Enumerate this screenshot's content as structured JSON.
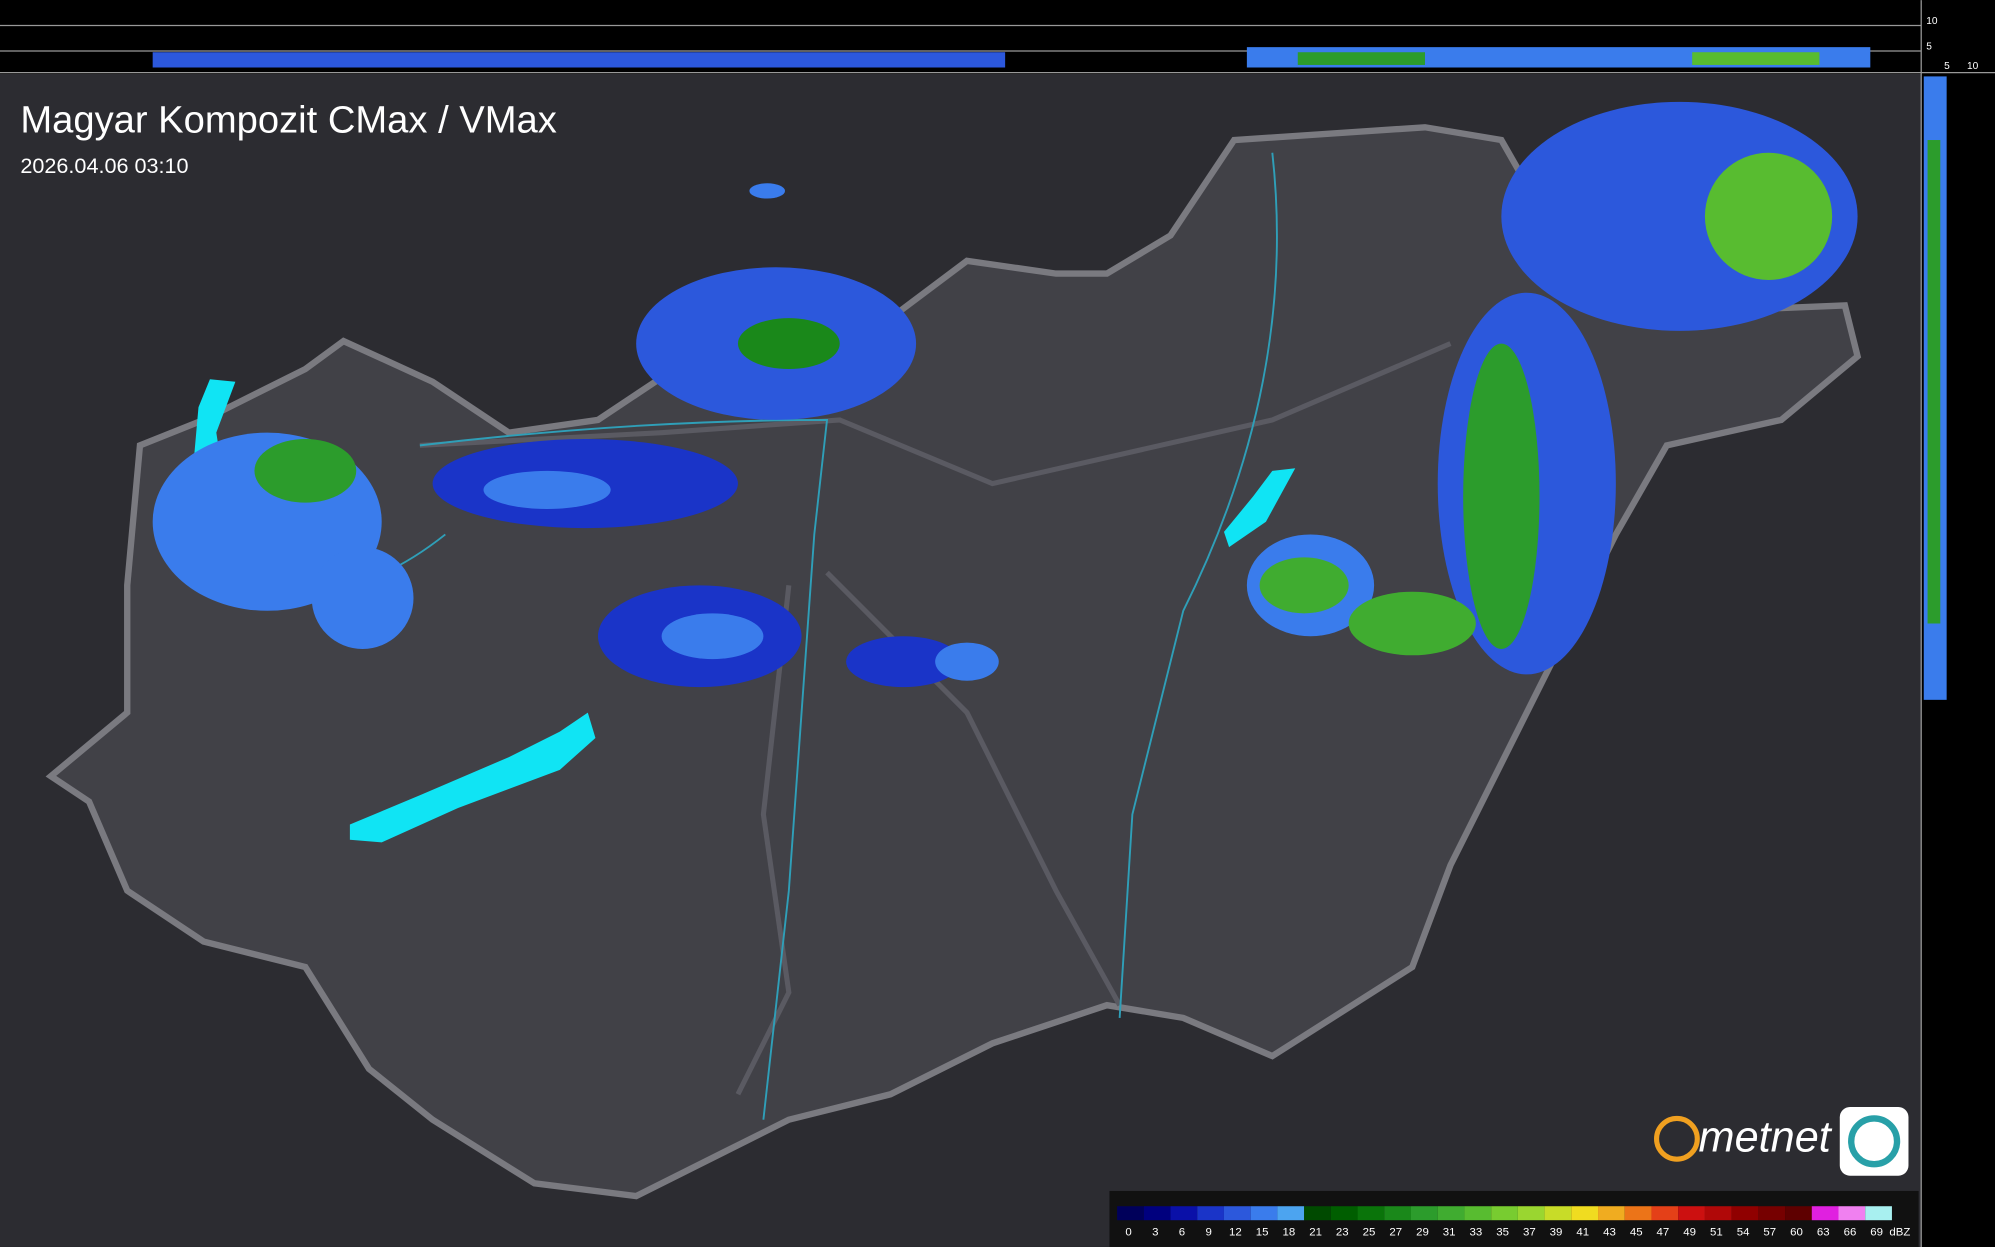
{
  "header": {
    "title": "Magyar Kompozit CMax / VMax",
    "timestamp": "2026.04.06 03:10"
  },
  "side_axis": {
    "top_labels": [
      "10",
      "5"
    ],
    "bottom_labels": [
      "5",
      "10"
    ]
  },
  "logo": {
    "text": "metnet"
  },
  "legend": {
    "unit": "dBZ",
    "levels": [
      {
        "value": 0,
        "color": "#00005a"
      },
      {
        "value": 3,
        "color": "#00007e"
      },
      {
        "value": 6,
        "color": "#0a10a8"
      },
      {
        "value": 9,
        "color": "#1a34c8"
      },
      {
        "value": 12,
        "color": "#2c58dc"
      },
      {
        "value": 15,
        "color": "#3a7cec"
      },
      {
        "value": 18,
        "color": "#4ca4f0"
      },
      {
        "value": 21,
        "color": "#004a00"
      },
      {
        "value": 23,
        "color": "#005e00"
      },
      {
        "value": 25,
        "color": "#0a740a"
      },
      {
        "value": 27,
        "color": "#1a881a"
      },
      {
        "value": 29,
        "color": "#2c9c2c"
      },
      {
        "value": 31,
        "color": "#40ac30"
      },
      {
        "value": 33,
        "color": "#58bc30"
      },
      {
        "value": 35,
        "color": "#78cc30"
      },
      {
        "value": 37,
        "color": "#9ad630"
      },
      {
        "value": 39,
        "color": "#c8dc28"
      },
      {
        "value": 41,
        "color": "#f0dc20"
      },
      {
        "value": 43,
        "color": "#f0ac20"
      },
      {
        "value": 45,
        "color": "#ec7418"
      },
      {
        "value": 47,
        "color": "#e44018"
      },
      {
        "value": 49,
        "color": "#cc1010"
      },
      {
        "value": 51,
        "color": "#b00808"
      },
      {
        "value": 54,
        "color": "#900000"
      },
      {
        "value": 57,
        "color": "#760000"
      },
      {
        "value": 60,
        "color": "#5e0000"
      },
      {
        "value": 63,
        "color": "#e020e0"
      },
      {
        "value": 66,
        "color": "#f080f0"
      },
      {
        "value": 69,
        "color": "#a8f0f0"
      }
    ]
  }
}
